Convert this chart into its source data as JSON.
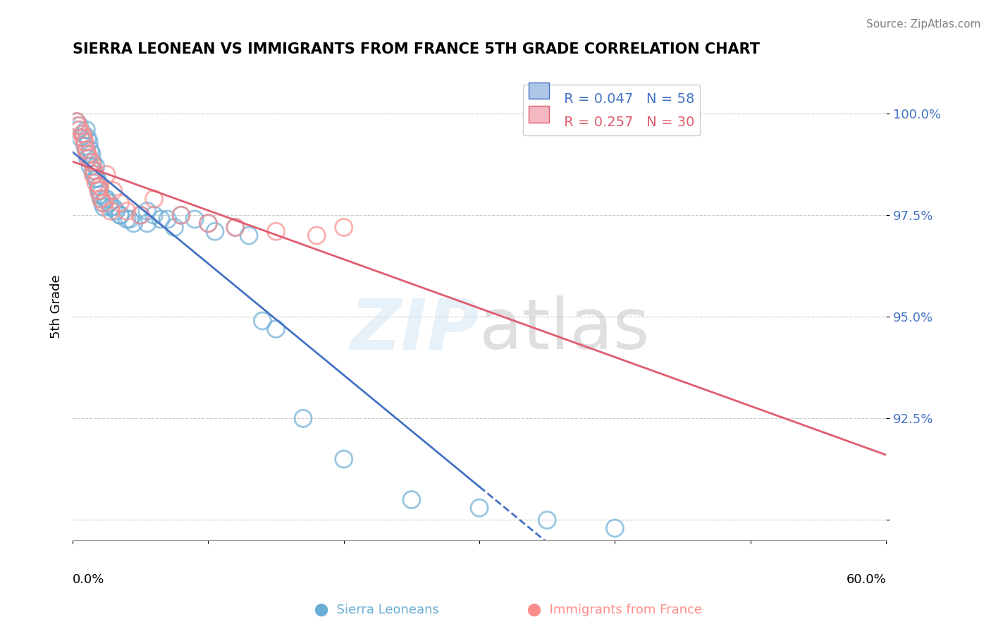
{
  "title": "SIERRA LEONEAN VS IMMIGRANTS FROM FRANCE 5TH GRADE CORRELATION CHART",
  "source_text": "Source: ZipAtlas.com",
  "xlabel_bottom_left": "0.0%",
  "xlabel_bottom_right": "60.0%",
  "ylabel": "5th Grade",
  "yticks": [
    90.0,
    92.5,
    95.0,
    97.5,
    100.0
  ],
  "ytick_labels": [
    "",
    "92.5%",
    "95.0%",
    "97.5%",
    "100.0%"
  ],
  "xlim": [
    0.0,
    60.0
  ],
  "ylim": [
    89.5,
    101.0
  ],
  "blue_color": "#6baed6",
  "pink_color": "#fc8d8d",
  "blue_R": 0.047,
  "blue_N": 58,
  "pink_R": 0.257,
  "pink_N": 30,
  "blue_scatter_x": [
    0.3,
    0.5,
    0.8,
    1.0,
    1.1,
    1.2,
    1.3,
    1.4,
    1.5,
    1.6,
    1.7,
    1.8,
    1.9,
    2.0,
    2.1,
    2.2,
    2.3,
    2.5,
    2.7,
    3.0,
    3.2,
    3.5,
    4.0,
    4.5,
    5.0,
    5.5,
    6.0,
    6.5,
    7.0,
    8.0,
    9.0,
    10.0,
    12.0,
    14.0,
    15.0,
    17.0,
    20.0,
    25.0,
    30.0,
    35.0,
    40.0,
    0.4,
    0.6,
    0.9,
    1.0,
    1.1,
    1.3,
    1.5,
    1.7,
    2.0,
    2.4,
    2.8,
    3.5,
    4.2,
    5.5,
    7.5,
    10.5,
    13.0
  ],
  "blue_scatter_y": [
    99.8,
    99.7,
    99.5,
    99.6,
    99.4,
    99.3,
    99.1,
    99.0,
    98.8,
    98.5,
    98.7,
    98.4,
    98.2,
    98.0,
    97.9,
    97.8,
    97.7,
    97.9,
    97.8,
    97.7,
    97.6,
    97.5,
    97.4,
    97.3,
    97.5,
    97.6,
    97.5,
    97.4,
    97.4,
    97.5,
    97.4,
    97.3,
    97.2,
    94.9,
    94.7,
    92.5,
    91.5,
    90.5,
    90.3,
    90.0,
    89.8,
    99.6,
    99.4,
    99.2,
    99.1,
    98.9,
    98.7,
    98.6,
    98.4,
    98.1,
    97.9,
    97.7,
    97.5,
    97.4,
    97.3,
    97.2,
    97.1,
    97.0
  ],
  "pink_scatter_x": [
    0.3,
    0.5,
    0.7,
    0.9,
    1.0,
    1.2,
    1.4,
    1.5,
    1.7,
    1.9,
    2.1,
    2.3,
    2.5,
    2.8,
    3.0,
    3.5,
    4.0,
    5.0,
    6.0,
    8.0,
    10.0,
    12.0,
    15.0,
    18.0,
    20.0,
    0.4,
    0.8,
    1.1,
    1.6,
    2.0
  ],
  "pink_scatter_y": [
    99.8,
    99.6,
    99.5,
    99.3,
    99.1,
    98.9,
    98.8,
    98.5,
    98.3,
    98.1,
    97.9,
    97.8,
    98.5,
    97.6,
    98.1,
    97.8,
    97.6,
    97.5,
    97.9,
    97.5,
    97.3,
    97.2,
    97.1,
    97.0,
    97.2,
    99.7,
    99.4,
    99.0,
    98.6,
    98.2
  ],
  "legend_entries": [
    "Sierra Leoneans",
    "Immigrants from France"
  ],
  "watermark": "ZIPatlas"
}
